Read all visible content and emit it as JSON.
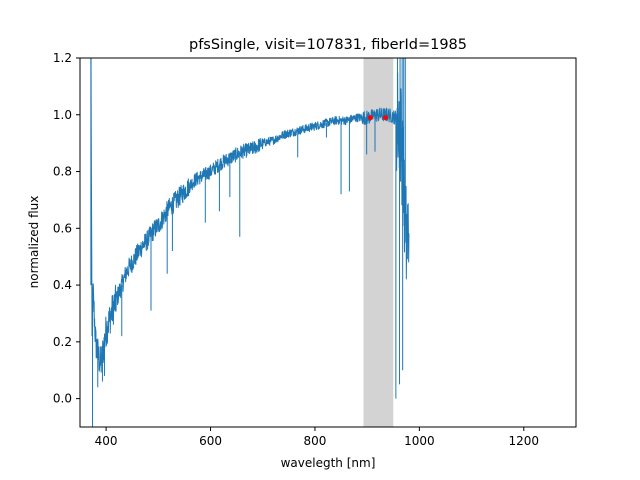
{
  "chart_data": {
    "type": "line",
    "title": "pfsSingle, visit=107831, fiberId=1985",
    "xlabel": "wavelegth [nm]",
    "ylabel": "normalized flux",
    "xlim": [
      350,
      1300
    ],
    "ylim": [
      -0.1,
      1.2
    ],
    "xticks": [
      400,
      600,
      800,
      1000,
      1200
    ],
    "yticks": [
      0.0,
      0.2,
      0.4,
      0.6,
      0.8,
      1.0,
      1.2
    ],
    "xtick_labels": [
      "400",
      "600",
      "800",
      "1000",
      "1200"
    ],
    "ytick_labels": [
      "0.0",
      "0.2",
      "0.4",
      "0.6",
      "0.8",
      "1.0",
      "1.2"
    ],
    "grid": false,
    "colors": {
      "line": "#1f77b4",
      "band": "#d3d3d3",
      "points": "#ff0000"
    },
    "shaded_band": {
      "x": [
        893,
        950
      ]
    },
    "series": [
      {
        "x": [
          371,
          373,
          375,
          380,
          385,
          390,
          395,
          400,
          410,
          420,
          430,
          440,
          450,
          460,
          470,
          480,
          490,
          500,
          510,
          520,
          530,
          540,
          550,
          560,
          570,
          580,
          590,
          600,
          620,
          640,
          660,
          680,
          700,
          720,
          740,
          760,
          780,
          800,
          820,
          840,
          860,
          880,
          900,
          920,
          940,
          955,
          962,
          966,
          970,
          975,
          980
        ],
        "y": [
          1.2,
          0.2,
          0.38,
          0.2,
          0.15,
          0.12,
          0.18,
          0.24,
          0.3,
          0.35,
          0.4,
          0.45,
          0.48,
          0.51,
          0.54,
          0.56,
          0.59,
          0.61,
          0.64,
          0.67,
          0.69,
          0.71,
          0.73,
          0.75,
          0.77,
          0.78,
          0.79,
          0.8,
          0.83,
          0.85,
          0.87,
          0.88,
          0.9,
          0.91,
          0.93,
          0.94,
          0.95,
          0.96,
          0.97,
          0.98,
          0.98,
          0.99,
          0.99,
          1.0,
          1.0,
          0.99,
          0.97,
          0.9,
          0.75,
          0.55,
          0.6
        ]
      }
    ],
    "absorption_lines": [
      {
        "x": 374,
        "y": -0.1
      },
      {
        "x": 384,
        "y": 0.04
      },
      {
        "x": 393,
        "y": 0.06
      },
      {
        "x": 397,
        "y": 0.08
      },
      {
        "x": 430,
        "y": 0.22
      },
      {
        "x": 486,
        "y": 0.31
      },
      {
        "x": 517,
        "y": 0.44
      },
      {
        "x": 527,
        "y": 0.52
      },
      {
        "x": 590,
        "y": 0.62
      },
      {
        "x": 617,
        "y": 0.66
      },
      {
        "x": 637,
        "y": 0.71
      },
      {
        "x": 656,
        "y": 0.57
      },
      {
        "x": 767,
        "y": 0.85
      },
      {
        "x": 822,
        "y": 0.92
      },
      {
        "x": 850,
        "y": 0.72
      },
      {
        "x": 866,
        "y": 0.73
      },
      {
        "x": 899,
        "y": 0.86
      },
      {
        "x": 915,
        "y": 0.87
      },
      {
        "x": 955,
        "y": 0.0
      },
      {
        "x": 962,
        "y": 0.05
      },
      {
        "x": 968,
        "y": 0.1
      }
    ],
    "points": [
      {
        "x": 906,
        "y": 0.99
      },
      {
        "x": 935,
        "y": 0.99
      }
    ]
  }
}
